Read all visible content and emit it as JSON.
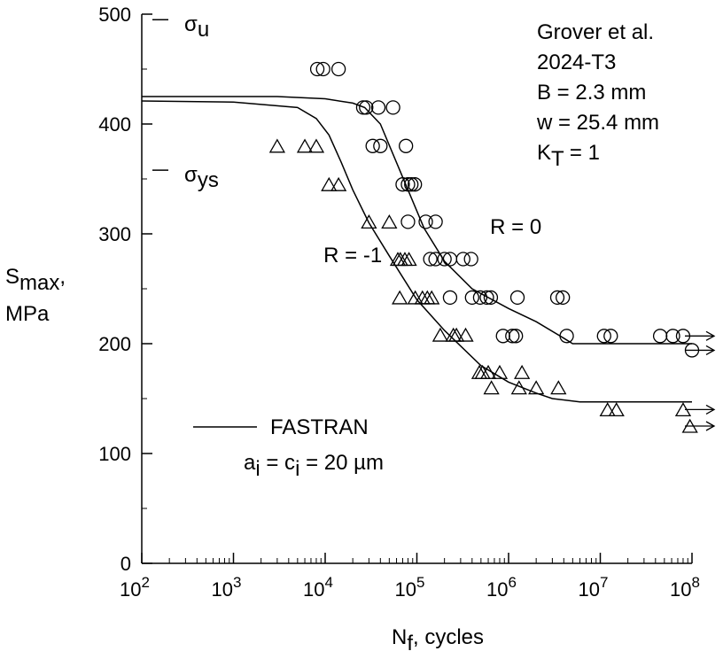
{
  "chart_data": {
    "type": "scatter",
    "x_scale": "log",
    "xlim": [
      100,
      100000000
    ],
    "ylim": [
      0,
      500
    ],
    "grid": false,
    "xlabel": {
      "main": "N",
      "sub": "f",
      "rest": ", cycles"
    },
    "ylabel": {
      "line1_main": "S",
      "line1_sub": "max",
      "line1_rest": ",",
      "line2": "MPa"
    },
    "x_ticks": [
      {
        "value": 100,
        "base": "10",
        "exp": "2"
      },
      {
        "value": 1000,
        "base": "10",
        "exp": "3"
      },
      {
        "value": 10000,
        "base": "10",
        "exp": "4"
      },
      {
        "value": 100000,
        "base": "10",
        "exp": "5"
      },
      {
        "value": 1000000,
        "base": "10",
        "exp": "6"
      },
      {
        "value": 10000000,
        "base": "10",
        "exp": "7"
      },
      {
        "value": 100000000,
        "base": "10",
        "exp": "8"
      }
    ],
    "y_ticks": [
      {
        "value": 0,
        "label": "0"
      },
      {
        "value": 100,
        "label": "100"
      },
      {
        "value": 200,
        "label": "200"
      },
      {
        "value": 300,
        "label": "300"
      },
      {
        "value": 400,
        "label": "400"
      },
      {
        "value": 500,
        "label": "500"
      }
    ],
    "stress_markers": [
      {
        "value": 495,
        "symbol": "σ",
        "sub": "u"
      },
      {
        "value": 358,
        "symbol": "σ",
        "sub": "ys"
      }
    ],
    "info_lines": [
      {
        "main": "Grover et al."
      },
      {
        "main": "2024-T3"
      },
      {
        "main": "B = 2.3 mm"
      },
      {
        "main": "w = 25.4 mm"
      },
      {
        "main": "K",
        "sub": "T",
        "rest": " = 1"
      }
    ],
    "curve_labels": [
      {
        "text": "R = 0",
        "x": 1200000,
        "y": 300
      },
      {
        "text": "R = -1",
        "x": 20000,
        "y": 274
      }
    ],
    "legend": {
      "line_label": "FASTRAN",
      "note": [
        {
          "t": "a",
          "s": false
        },
        {
          "t": "i",
          "s": true
        },
        {
          "t": " = c",
          "s": false
        },
        {
          "t": "i",
          "s": true
        },
        {
          "t": " = 20 ",
          "s": false
        },
        {
          "t": "µm",
          "s": false
        }
      ]
    },
    "series": [
      {
        "name": "R = 0",
        "marker": "circle",
        "points": [
          [
            8200,
            450
          ],
          [
            9500,
            450
          ],
          [
            14000,
            450
          ],
          [
            26000,
            415
          ],
          [
            28000,
            415
          ],
          [
            38000,
            415
          ],
          [
            55000,
            415
          ],
          [
            33000,
            380
          ],
          [
            40000,
            380
          ],
          [
            76000,
            380
          ],
          [
            70000,
            345
          ],
          [
            80000,
            345
          ],
          [
            87000,
            345
          ],
          [
            95000,
            345
          ],
          [
            80000,
            311
          ],
          [
            125000,
            311
          ],
          [
            160000,
            311
          ],
          [
            140000,
            277
          ],
          [
            160000,
            277
          ],
          [
            200000,
            277
          ],
          [
            230000,
            277
          ],
          [
            320000,
            277
          ],
          [
            390000,
            277
          ],
          [
            230000,
            242
          ],
          [
            400000,
            242
          ],
          [
            490000,
            242
          ],
          [
            580000,
            242
          ],
          [
            640000,
            242
          ],
          [
            1250000,
            242
          ],
          [
            3400000,
            242
          ],
          [
            3900000,
            242
          ],
          [
            870000,
            207
          ],
          [
            1100000,
            207
          ],
          [
            1200000,
            207
          ],
          [
            4300000,
            207
          ],
          [
            11000000,
            207
          ],
          [
            13000000,
            207
          ],
          [
            45000000,
            207
          ],
          [
            62000000,
            207
          ],
          [
            80000000,
            207
          ],
          [
            100000000,
            194
          ]
        ]
      },
      {
        "name": "R = -1",
        "marker": "triangle",
        "points": [
          [
            3000,
            380
          ],
          [
            6000,
            380
          ],
          [
            8000,
            380
          ],
          [
            11000,
            345
          ],
          [
            14000,
            345
          ],
          [
            30000,
            311
          ],
          [
            50000,
            311
          ],
          [
            62000,
            277
          ],
          [
            66000,
            277
          ],
          [
            74000,
            277
          ],
          [
            82000,
            277
          ],
          [
            65000,
            242
          ],
          [
            96000,
            242
          ],
          [
            115000,
            242
          ],
          [
            130000,
            242
          ],
          [
            145000,
            242
          ],
          [
            180000,
            208
          ],
          [
            250000,
            208
          ],
          [
            270000,
            208
          ],
          [
            340000,
            208
          ],
          [
            480000,
            174
          ],
          [
            520000,
            174
          ],
          [
            600000,
            174
          ],
          [
            800000,
            174
          ],
          [
            1400000,
            174
          ],
          [
            650000,
            160
          ],
          [
            1300000,
            160
          ],
          [
            2000000,
            160
          ],
          [
            3500000,
            160
          ],
          [
            12000000,
            140
          ],
          [
            15000000,
            140
          ],
          [
            80000000,
            140
          ],
          [
            95000000,
            125
          ]
        ]
      }
    ],
    "fit_curves": [
      {
        "name": "R = 0",
        "points": [
          [
            100,
            425
          ],
          [
            3000,
            425
          ],
          [
            10000,
            423
          ],
          [
            20000,
            419
          ],
          [
            27000,
            415
          ],
          [
            40000,
            400
          ],
          [
            60000,
            365
          ],
          [
            80000,
            340
          ],
          [
            120000,
            305
          ],
          [
            200000,
            275
          ],
          [
            400000,
            250
          ],
          [
            1000000,
            232
          ],
          [
            2000000,
            220
          ],
          [
            4000000,
            205
          ],
          [
            5000000,
            200
          ],
          [
            100000000,
            200
          ]
        ]
      },
      {
        "name": "R = -1",
        "points": [
          [
            100,
            421
          ],
          [
            1000,
            420
          ],
          [
            5000,
            415
          ],
          [
            8000,
            405
          ],
          [
            11000,
            390
          ],
          [
            15000,
            365
          ],
          [
            20000,
            340
          ],
          [
            30000,
            310
          ],
          [
            50000,
            280
          ],
          [
            100000,
            240
          ],
          [
            200000,
            212
          ],
          [
            500000,
            180
          ],
          [
            1000000,
            165
          ],
          [
            2000000,
            155
          ],
          [
            3000000,
            150
          ],
          [
            6000000,
            147
          ],
          [
            100000000,
            147
          ]
        ]
      }
    ],
    "runouts": [
      {
        "series": "R = 0",
        "x": 100000000,
        "y": 207
      },
      {
        "series": "R = 0",
        "x": 100000000,
        "y": 194
      },
      {
        "series": "R = -1",
        "x": 100000000,
        "y": 140
      },
      {
        "series": "R = -1",
        "x": 100000000,
        "y": 125
      }
    ]
  }
}
